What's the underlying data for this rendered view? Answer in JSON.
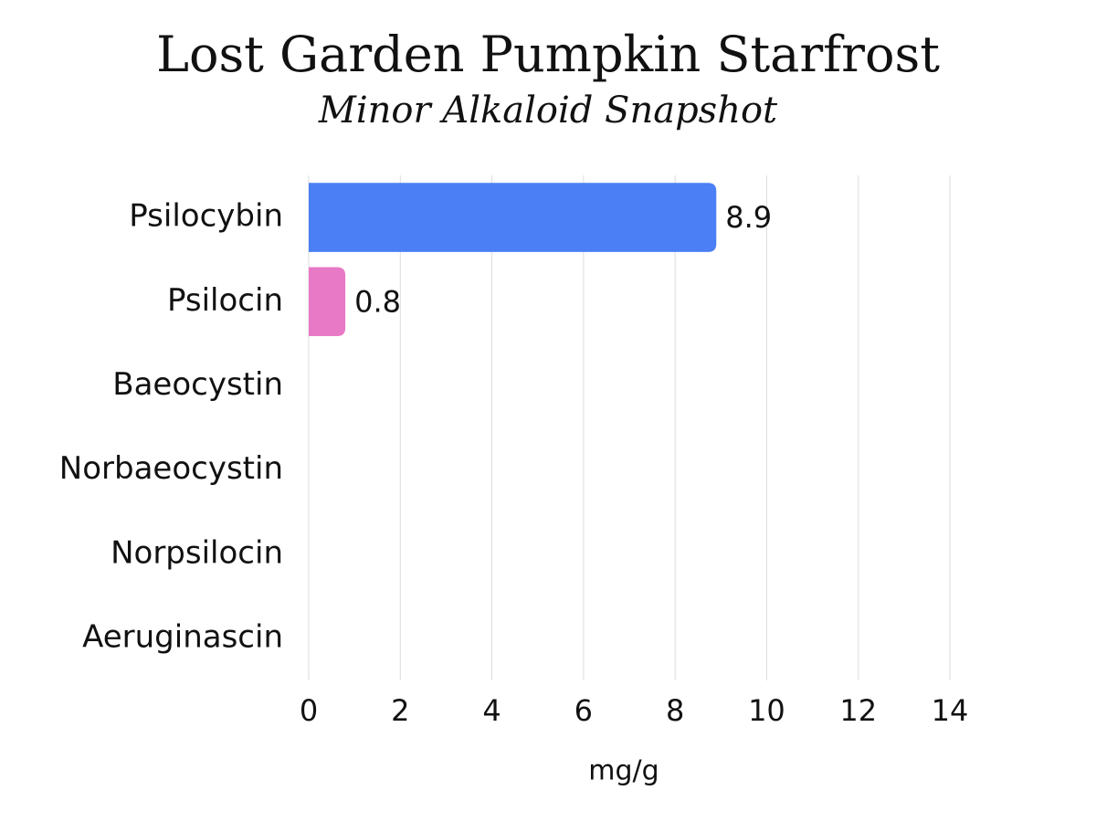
{
  "chart_data": {
    "type": "bar",
    "orientation": "horizontal",
    "title": "Lost Garden Pumpkin Starfrost",
    "subtitle": "Minor Alkaloid Snapshot",
    "x_label": "mg/g",
    "categories": [
      "Psilocybin",
      "Psilocin",
      "Baeocystin",
      "Norbaeocystin",
      "Norpsilocin",
      "Aeruginascin"
    ],
    "values": [
      8.9,
      0.8,
      null,
      null,
      null,
      null
    ],
    "colors": [
      "#4a7ff5",
      "#e879c6",
      "#4a7ff5",
      "#4a7ff5",
      "#4a7ff5",
      "#4a7ff5"
    ],
    "xlim": [
      0,
      14
    ],
    "xticks": [
      0,
      2,
      4,
      6,
      8,
      10,
      12,
      14
    ],
    "grid": true
  }
}
